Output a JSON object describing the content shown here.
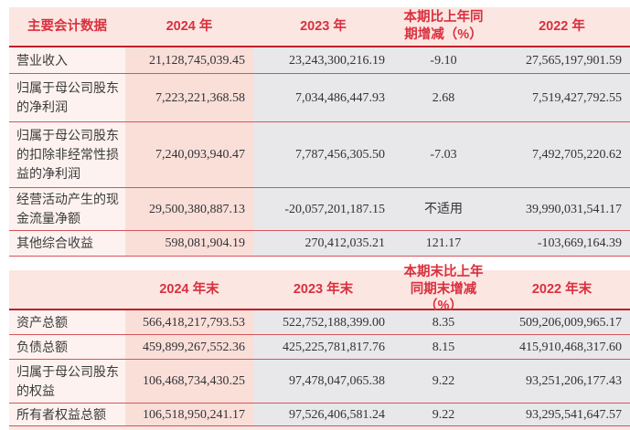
{
  "colors": {
    "accent_red": "#d9303e",
    "header_bg": "#fbe6e2",
    "label_col_bg": "#fdf2ef",
    "col_2024_bg": "#fadfd9",
    "col_gray_bg": "#e8e8ea",
    "rule_dark": "#bf202b",
    "rule_light": "#d4545c"
  },
  "table1": {
    "headers": [
      "主要会计数据",
      "2024 年",
      "2023 年",
      "本期比上年同期增减（%）",
      "2022 年"
    ],
    "rows": [
      {
        "label": "营业收入",
        "v2024": "21,128,745,039.45",
        "v2023": "23,243,300,216.19",
        "change": "-9.10",
        "v2022": "27,565,197,901.59"
      },
      {
        "label": "归属于母公司股东的净利润",
        "v2024": "7,223,221,368.58",
        "v2023": "7,034,486,447.93",
        "change": "2.68",
        "v2022": "7,519,427,792.55"
      },
      {
        "label": "归属于母公司股东的扣除非经常性损益的净利润",
        "v2024": "7,240,093,940.47",
        "v2023": "7,787,456,305.50",
        "change": "-7.03",
        "v2022": "7,492,705,220.62"
      },
      {
        "label": "经营活动产生的现金流量净额",
        "v2024": "29,500,380,887.13",
        "v2023": "-20,057,201,187.15",
        "change": "不适用",
        "v2022": "39,990,031,541.17"
      },
      {
        "label": "其他综合收益",
        "v2024": "598,081,904.19",
        "v2023": "270,412,035.21",
        "change": "121.17",
        "v2022": "-103,669,164.39"
      }
    ]
  },
  "table2": {
    "headers": [
      "",
      "2024 年末",
      "2023 年末",
      "本期末比上年同期末增减（%）",
      "2022 年末"
    ],
    "rows": [
      {
        "label": "资产总额",
        "v2024": "566,418,217,793.53",
        "v2023": "522,752,188,399.00",
        "change": "8.35",
        "v2022": "509,206,009,965.17"
      },
      {
        "label": "负债总额",
        "v2024": "459,899,267,552.36",
        "v2023": "425,225,781,817.76",
        "change": "8.15",
        "v2022": "415,910,468,317.60"
      },
      {
        "label": "归属于母公司股东的权益",
        "v2024": "106,468,734,430.25",
        "v2023": "97,478,047,065.38",
        "change": "9.22",
        "v2022": "93,251,206,177.43"
      },
      {
        "label": "所有者权益总额",
        "v2024": "106,518,950,241.17",
        "v2023": "97,526,406,581.24",
        "change": "9.22",
        "v2022": "93,295,541,647.57"
      }
    ]
  }
}
